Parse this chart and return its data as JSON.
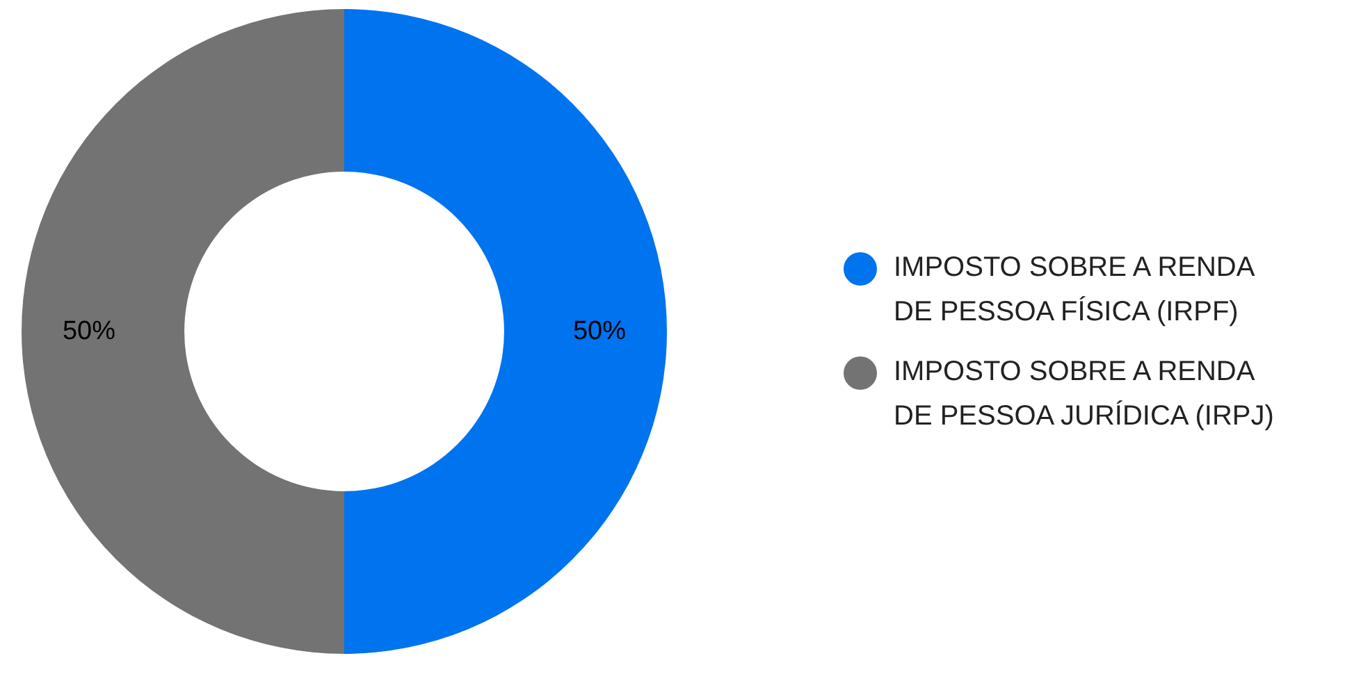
{
  "chart_data": {
    "type": "donut",
    "categories": [
      "IMPOSTO SOBRE A RENDA\nDE PESSOA FÍSICA (IRPF)",
      "IMPOSTO SOBRE A RENDA\nDE PESSOA JURÍDICA (IRPJ)"
    ],
    "values": [
      50,
      50
    ],
    "colors": [
      "#0073ee",
      "#737373"
    ],
    "value_labels": [
      "50%",
      "50%"
    ],
    "legend": "right"
  }
}
